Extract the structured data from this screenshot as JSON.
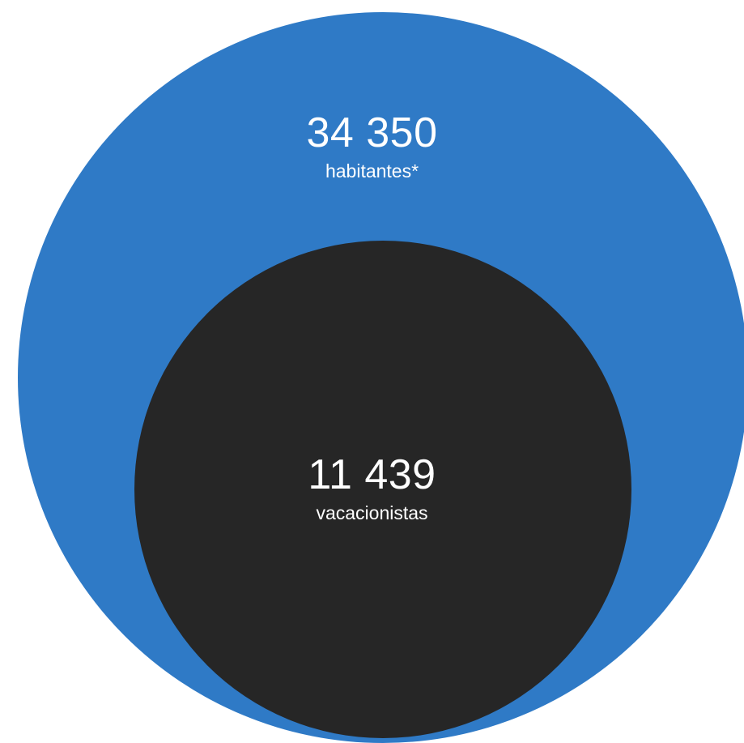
{
  "colors": {
    "outer": "#2f7ac6",
    "inner": "#262626",
    "text": "#ffffff"
  },
  "outer": {
    "value": "34 350",
    "caption": "habitantes*"
  },
  "inner": {
    "value": "11 439",
    "caption": "vacacionistas"
  }
}
